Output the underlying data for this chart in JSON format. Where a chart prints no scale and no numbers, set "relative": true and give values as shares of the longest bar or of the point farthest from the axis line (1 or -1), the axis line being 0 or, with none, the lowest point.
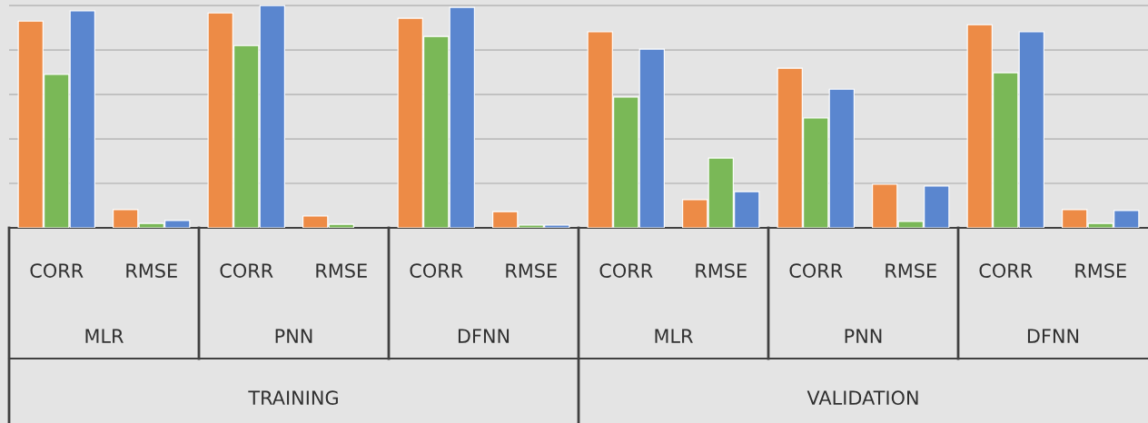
{
  "chart_data": {
    "type": "bar",
    "relative": true,
    "grid": "y",
    "categories": [
      "CORR",
      "RMSE",
      "CORR",
      "RMSE",
      "CORR",
      "RMSE",
      "CORR",
      "RMSE",
      "CORR",
      "RMSE",
      "CORR",
      "RMSE"
    ],
    "annotations": [
      "MLR",
      "PNN",
      "DFNN",
      "MLR",
      "PNN",
      "DFNN",
      "TRAINING",
      "VALIDATION"
    ],
    "series": [
      {
        "color": "#ed8b46",
        "values": [
          0.93,
          0.082,
          0.967,
          0.053,
          0.943,
          0.073,
          0.882,
          0.127,
          0.718,
          0.196,
          0.914,
          0.082
        ]
      },
      {
        "color": "#7ab857",
        "values": [
          0.69,
          0.02,
          0.82,
          0.016,
          0.861,
          0.012,
          0.588,
          0.314,
          0.494,
          0.029,
          0.698,
          0.02
        ]
      },
      {
        "color": "#5a86cf",
        "values": [
          0.976,
          0.033,
          1.0,
          null,
          0.992,
          0.012,
          0.804,
          0.163,
          0.624,
          0.188,
          0.882,
          0.078
        ]
      }
    ]
  }
}
